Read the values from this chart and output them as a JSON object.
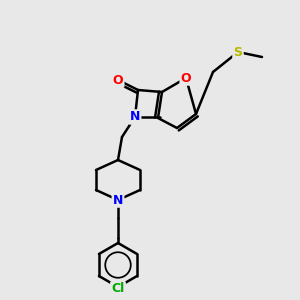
{
  "background_color": "#e8e8e8",
  "atom_colors": {
    "O": "#ff0000",
    "N": "#0000ff",
    "S": "#b8b800",
    "Cl": "#00aa00",
    "C": "#000000"
  },
  "bond_color": "#000000",
  "bond_width": 1.8,
  "figsize": [
    3.0,
    3.0
  ],
  "dpi": 100
}
